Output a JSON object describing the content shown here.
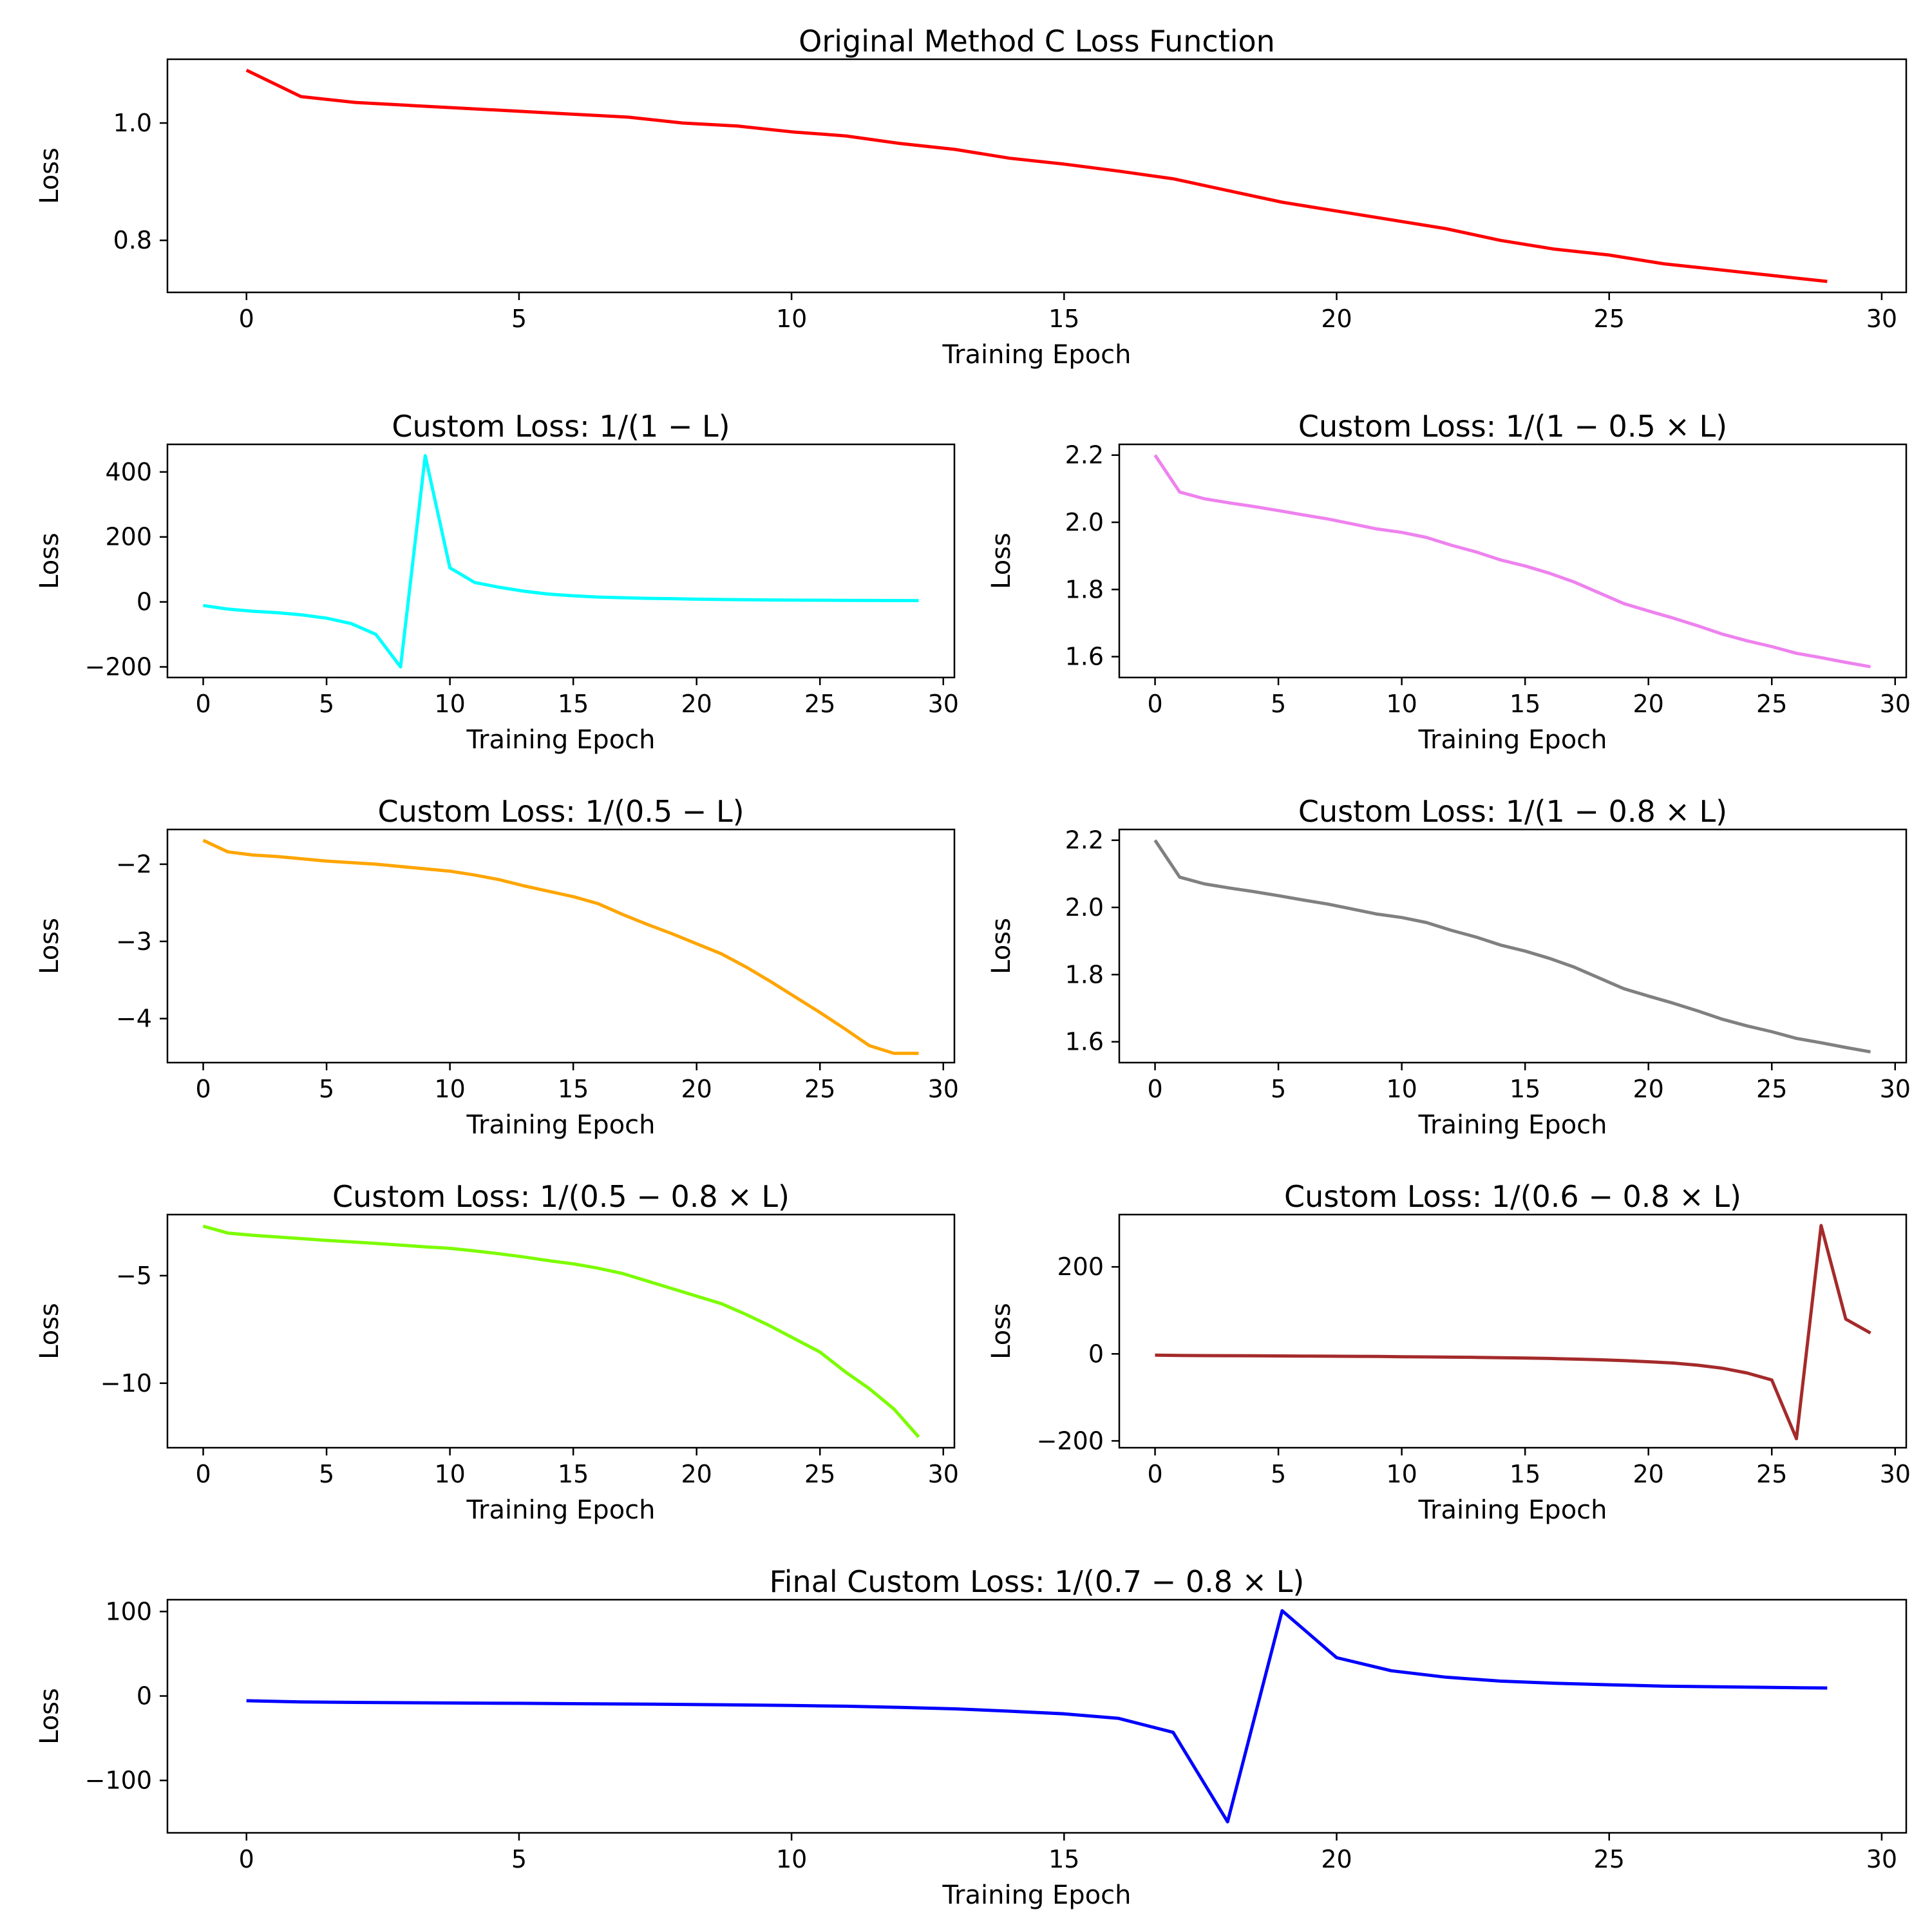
{
  "chart_data": [
    {
      "type": "line",
      "title": "Original Method C Loss Function",
      "xlabel": "Training Epoch",
      "ylabel": "Loss",
      "xlim": [
        -1.45,
        30.45
      ],
      "ylim": [
        0.7113,
        1.1087
      ],
      "xticks": [
        0,
        5,
        10,
        15,
        20,
        25,
        30
      ],
      "yticks": [
        0.8,
        1.0
      ],
      "ytick_labels": [
        "0.8",
        "1.0"
      ],
      "color": "#ff0000",
      "x": [
        0,
        1,
        2,
        3,
        4,
        5,
        6,
        7,
        8,
        9,
        10,
        11,
        12,
        13,
        14,
        15,
        16,
        17,
        18,
        19,
        20,
        21,
        22,
        23,
        24,
        25,
        26,
        27,
        28,
        29
      ],
      "y": [
        1.09,
        1.045,
        1.035,
        1.03,
        1.025,
        1.02,
        1.015,
        1.01,
        1.0,
        0.995,
        0.985,
        0.978,
        0.965,
        0.955,
        0.94,
        0.93,
        0.918,
        0.905,
        0.885,
        0.865,
        0.85,
        0.835,
        0.82,
        0.8,
        0.785,
        0.775,
        0.76,
        0.75,
        0.74,
        0.73
      ]
    },
    {
      "type": "line",
      "title": "Custom Loss: 1/(1 − L)",
      "xlabel": "Training Epoch",
      "ylabel": "Loss",
      "xlim": [
        -1.45,
        30.45
      ],
      "ylim": [
        -232.6,
        484.9
      ],
      "xticks": [
        0,
        5,
        10,
        15,
        20,
        25,
        30
      ],
      "yticks": [
        -200,
        0,
        200,
        400
      ],
      "ytick_labels": [
        "−200",
        "0",
        "200",
        "400"
      ],
      "color": "#00ffff",
      "x": [
        0,
        1,
        2,
        3,
        4,
        5,
        6,
        7,
        8,
        9,
        10,
        11,
        12,
        13,
        14,
        15,
        16,
        17,
        18,
        19,
        20,
        21,
        22,
        23,
        24,
        25,
        26,
        27,
        28,
        29
      ],
      "y": [
        -11.1,
        -22.2,
        -28.6,
        -33.3,
        -40,
        -50,
        -66.7,
        -100,
        -200,
        450,
        105,
        60,
        45,
        33,
        24,
        19,
        15,
        13,
        11,
        10,
        8.5,
        7.5,
        6.8,
        6,
        5.5,
        5.2,
        4.8,
        4.5,
        4.2,
        4
      ]
    },
    {
      "type": "line",
      "title": "Custom Loss: 1/(1 − 0.5 × L)",
      "xlabel": "Training Epoch",
      "ylabel": "Loss",
      "xlim": [
        -1.45,
        30.45
      ],
      "ylim": [
        1.538,
        2.232
      ],
      "xticks": [
        0,
        5,
        10,
        15,
        20,
        25,
        30
      ],
      "yticks": [
        1.6,
        1.8,
        2.0,
        2.2
      ],
      "ytick_labels": [
        "1.6",
        "1.8",
        "2.0",
        "2.2"
      ],
      "color": "#ee82ee",
      "x": [
        0,
        1,
        2,
        3,
        4,
        5,
        6,
        7,
        8,
        9,
        10,
        11,
        12,
        13,
        14,
        15,
        16,
        17,
        18,
        19,
        20,
        21,
        22,
        23,
        24,
        25,
        26,
        27,
        28,
        29
      ],
      "y": [
        2.2,
        2.09,
        2.07,
        2.058,
        2.047,
        2.035,
        2.022,
        2.01,
        1.995,
        1.98,
        1.97,
        1.955,
        1.932,
        1.912,
        1.888,
        1.87,
        1.848,
        1.822,
        1.79,
        1.758,
        1.736,
        1.715,
        1.692,
        1.667,
        1.647,
        1.63,
        1.61,
        1.597,
        1.583,
        1.57
      ]
    },
    {
      "type": "line",
      "title": "Custom Loss: 1/(0.5 − L)",
      "xlabel": "Training Epoch",
      "ylabel": "Loss",
      "xlim": [
        -1.45,
        30.45
      ],
      "ylim": [
        -4.57,
        -1.55
      ],
      "xticks": [
        0,
        5,
        10,
        15,
        20,
        25,
        30
      ],
      "yticks": [
        -4,
        -3,
        -2
      ],
      "ytick_labels": [
        "−4",
        "−3",
        "−2"
      ],
      "color": "#ffa500",
      "x": [
        0,
        1,
        2,
        3,
        4,
        5,
        6,
        7,
        8,
        9,
        10,
        11,
        12,
        13,
        14,
        15,
        16,
        17,
        18,
        19,
        20,
        21,
        22,
        23,
        24,
        25,
        26,
        27,
        28,
        29
      ],
      "y": [
        -1.69,
        -1.84,
        -1.88,
        -1.9,
        -1.93,
        -1.96,
        -1.98,
        -2.0,
        -2.03,
        -2.06,
        -2.09,
        -2.14,
        -2.2,
        -2.28,
        -2.35,
        -2.42,
        -2.51,
        -2.65,
        -2.78,
        -2.9,
        -3.03,
        -3.16,
        -3.33,
        -3.52,
        -3.72,
        -3.92,
        -4.13,
        -4.35,
        -4.45,
        -4.45
      ]
    },
    {
      "type": "line",
      "title": "Custom Loss: 1/(1 − 0.8 × L)",
      "xlabel": "Training Epoch",
      "ylabel": "Loss",
      "xlim": [
        -1.45,
        30.45
      ],
      "ylim": [
        1.538,
        2.232
      ],
      "xticks": [
        0,
        5,
        10,
        15,
        20,
        25,
        30
      ],
      "yticks": [
        1.6,
        1.8,
        2.0,
        2.2
      ],
      "ytick_labels": [
        "1.6",
        "1.8",
        "2.0",
        "2.2"
      ],
      "color": "#808080",
      "x": [
        0,
        1,
        2,
        3,
        4,
        5,
        6,
        7,
        8,
        9,
        10,
        11,
        12,
        13,
        14,
        15,
        16,
        17,
        18,
        19,
        20,
        21,
        22,
        23,
        24,
        25,
        26,
        27,
        28,
        29
      ],
      "y": [
        2.2,
        2.09,
        2.07,
        2.058,
        2.047,
        2.035,
        2.022,
        2.01,
        1.995,
        1.98,
        1.97,
        1.955,
        1.932,
        1.912,
        1.888,
        1.87,
        1.848,
        1.822,
        1.79,
        1.758,
        1.736,
        1.715,
        1.692,
        1.667,
        1.647,
        1.63,
        1.61,
        1.597,
        1.583,
        1.57
      ]
    },
    {
      "type": "line",
      "title": "Custom Loss: 1/(0.5 − 0.8 × L)",
      "xlabel": "Training Epoch",
      "ylabel": "Loss",
      "xlim": [
        -1.45,
        30.45
      ],
      "ylim": [
        -13.0,
        -2.16
      ],
      "xticks": [
        0,
        5,
        10,
        15,
        20,
        25,
        30
      ],
      "yticks": [
        -10,
        -5
      ],
      "ytick_labels": [
        "−10",
        "−5"
      ],
      "color": "#7cfc00",
      "x": [
        0,
        1,
        2,
        3,
        4,
        5,
        6,
        7,
        8,
        9,
        10,
        11,
        12,
        13,
        14,
        15,
        16,
        17,
        18,
        19,
        20,
        21,
        22,
        23,
        24,
        25,
        26,
        27,
        28,
        29
      ],
      "y": [
        -2.7,
        -3.02,
        -3.12,
        -3.2,
        -3.28,
        -3.36,
        -3.43,
        -3.5,
        -3.58,
        -3.66,
        -3.73,
        -3.85,
        -3.98,
        -4.13,
        -4.3,
        -4.45,
        -4.65,
        -4.9,
        -5.25,
        -5.6,
        -5.95,
        -6.3,
        -6.8,
        -7.35,
        -7.95,
        -8.55,
        -9.45,
        -10.25,
        -11.2,
        -12.5
      ]
    },
    {
      "type": "line",
      "title": "Custom Loss: 1/(0.6 − 0.8 × L)",
      "xlabel": "Training Epoch",
      "ylabel": "Loss",
      "xlim": [
        -1.45,
        30.45
      ],
      "ylim": [
        -215.7,
        320.2
      ],
      "xticks": [
        0,
        5,
        10,
        15,
        20,
        25,
        30
      ],
      "yticks": [
        -200,
        0,
        200
      ],
      "ytick_labels": [
        "−200",
        "0",
        "200"
      ],
      "color": "#a52a2a",
      "x": [
        0,
        1,
        2,
        3,
        4,
        5,
        6,
        7,
        8,
        9,
        10,
        11,
        12,
        13,
        14,
        15,
        16,
        17,
        18,
        19,
        20,
        21,
        22,
        23,
        24,
        25,
        26,
        27,
        28,
        29
      ],
      "y": [
        -3,
        -3.5,
        -4,
        -4.2,
        -4.5,
        -4.8,
        -5,
        -5.3,
        -5.6,
        -6,
        -6.5,
        -7,
        -7.5,
        -8,
        -8.7,
        -9.5,
        -10.5,
        -12,
        -13.5,
        -15.5,
        -18,
        -21,
        -26,
        -33,
        -44,
        -60,
        -195,
        295,
        80,
        48
      ]
    },
    {
      "type": "line",
      "title": "Final Custom Loss: 1/(0.7 − 0.8 × L)",
      "xlabel": "Training Epoch",
      "ylabel": "Loss",
      "xlim": [
        -1.45,
        30.45
      ],
      "ylim": [
        -162,
        114
      ],
      "xticks": [
        0,
        5,
        10,
        15,
        20,
        25,
        30
      ],
      "yticks": [
        -100,
        0,
        100
      ],
      "ytick_labels": [
        "−100",
        "0",
        "100"
      ],
      "color": "#0000ff",
      "x": [
        0,
        1,
        2,
        3,
        4,
        5,
        6,
        7,
        8,
        9,
        10,
        11,
        12,
        13,
        14,
        15,
        16,
        17,
        18,
        19,
        20,
        21,
        22,
        23,
        24,
        25,
        26,
        27,
        28,
        29
      ],
      "y": [
        -5.6,
        -7.1,
        -7.6,
        -8.0,
        -8.4,
        -8.7,
        -9.1,
        -9.5,
        -10.0,
        -10.6,
        -11.3,
        -12.1,
        -13.5,
        -15.2,
        -18.0,
        -21.1,
        -26.5,
        -43.0,
        -149.0,
        101.0,
        45.4,
        29.9,
        22.3,
        17.6,
        15.0,
        13.3,
        11.7,
        10.9,
        10.1,
        9.5
      ]
    }
  ]
}
